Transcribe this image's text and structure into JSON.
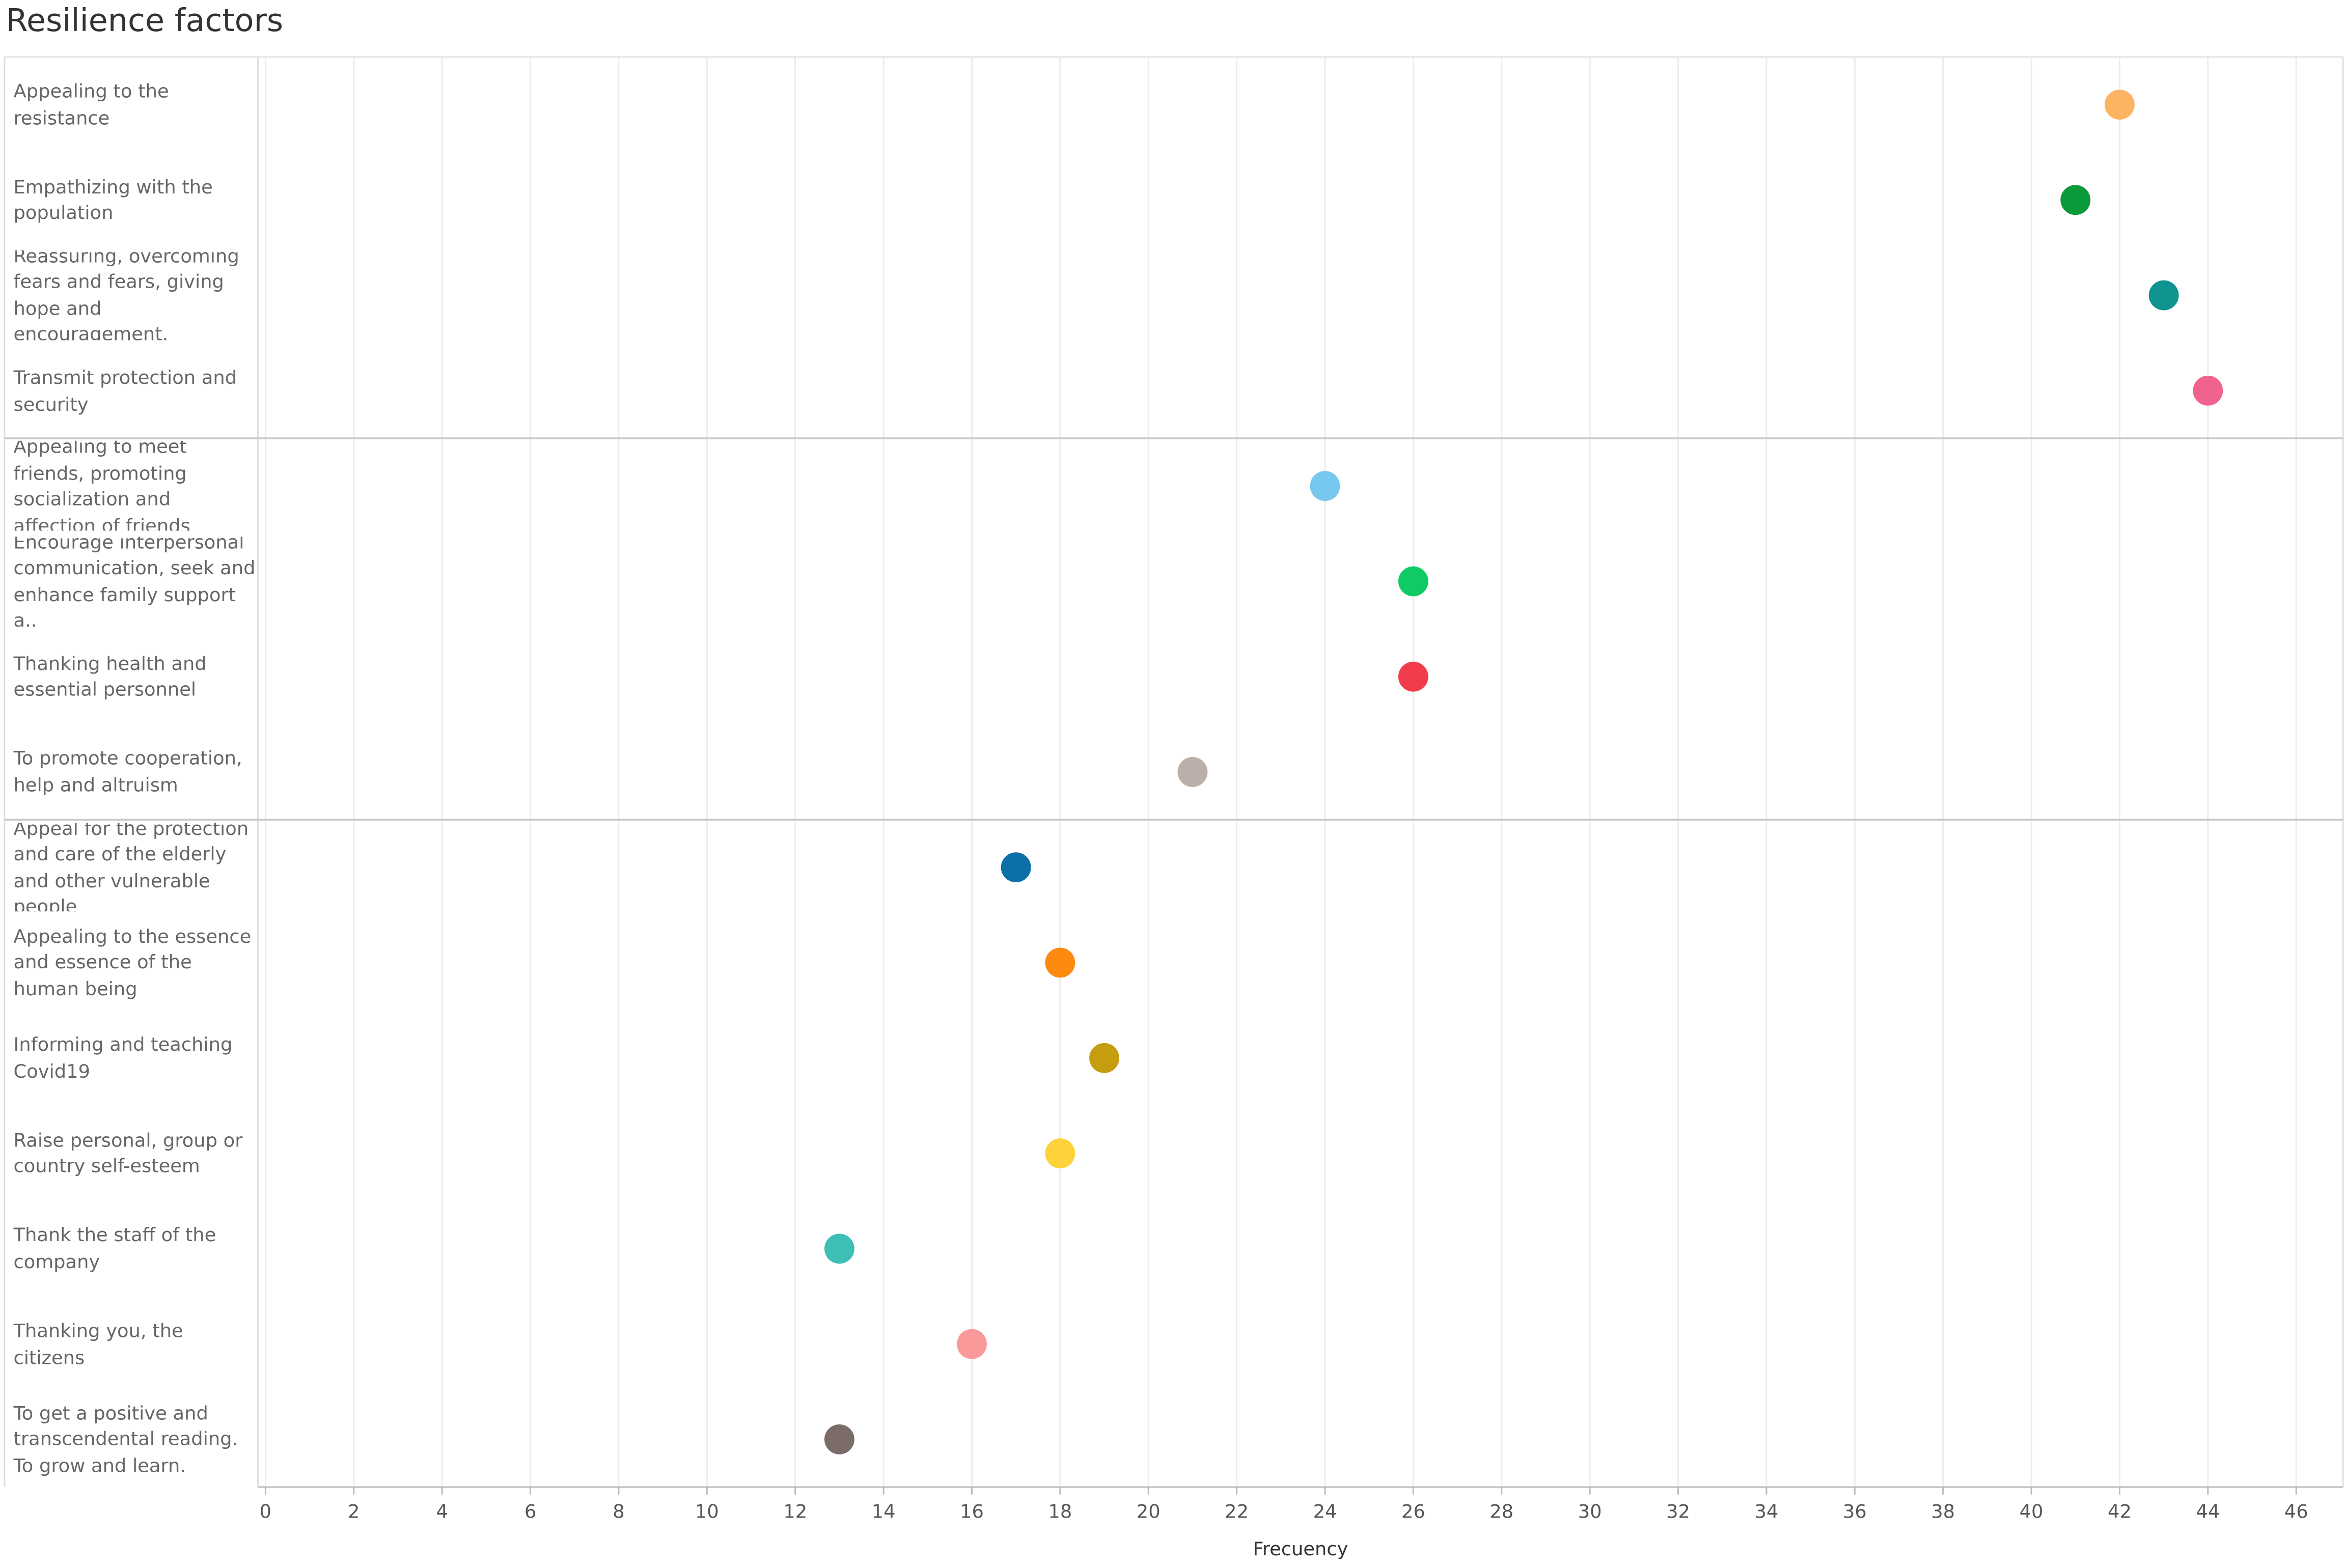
{
  "chart_data": {
    "type": "dot",
    "title": "Resilience factors",
    "x_label": "Frecuency",
    "xlim": [
      -0.17,
      47.06
    ],
    "xticks": [
      0,
      2,
      4,
      6,
      8,
      10,
      12,
      14,
      16,
      18,
      20,
      22,
      24,
      26,
      28,
      30,
      32,
      34,
      36,
      38,
      40,
      42,
      44,
      46
    ],
    "grid": true,
    "panels": [
      {
        "categories": [
          "Appealing to the resistance",
          "Empathizing with the population",
          "Reassuring, overcoming fears and fears, giving hope and encouragement.",
          "Transmit protection and security"
        ],
        "values": [
          42,
          41,
          43,
          44
        ],
        "colors": [
          "#fdb462",
          "#0a9a3a",
          "#0f9490",
          "#f1638f"
        ]
      },
      {
        "categories": [
          "Appealing to meet friends, promoting socialization and affection of friends",
          "Encourage interpersonal communication, seek and enhance family support a..",
          "Thanking health and essential personnel",
          "To promote cooperation, help and altruism"
        ],
        "values": [
          24,
          26,
          26,
          21
        ],
        "colors": [
          "#76c8ee",
          "#0ecb63",
          "#f23b4b",
          "#bcaea8"
        ]
      },
      {
        "categories": [
          "Appeal for the protection and care of the elderly and other vulnerable people",
          "Appealing to the essence and essence of the human being",
          "Informing and teaching Covid19",
          "Raise personal, group or country self-esteem",
          "Thank the staff of the company",
          "Thanking you, the citizens",
          "To get a positive and transcendental reading. To grow and learn."
        ],
        "values": [
          17,
          18,
          19,
          18,
          13,
          16,
          13
        ],
        "colors": [
          "#0b6fa8",
          "#fd8a10",
          "#c59d0e",
          "#fdd23a",
          "#3ebfb5",
          "#fb9899",
          "#7b6b69"
        ]
      }
    ]
  }
}
